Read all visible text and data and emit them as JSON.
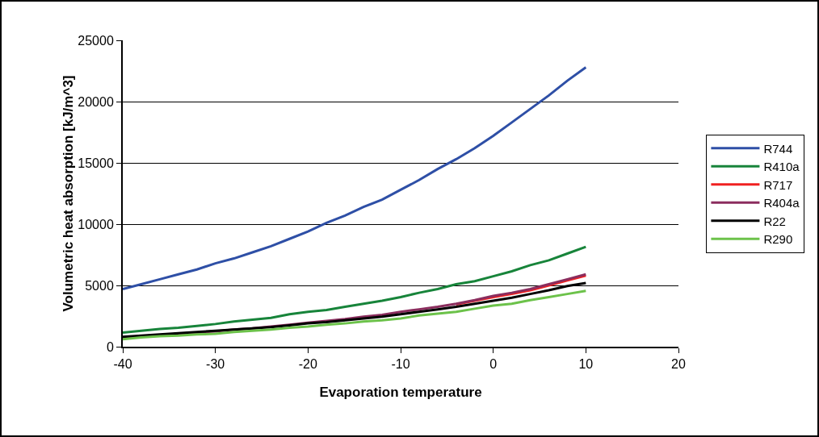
{
  "chart_data": {
    "type": "line",
    "xlabel": "Evaporation temperature",
    "ylabel": "Volumetric heat absorption [kJ/m^3]",
    "x": [
      -40,
      -38,
      -36,
      -34,
      -32,
      -30,
      -28,
      -26,
      -24,
      -22,
      -20,
      -18,
      -16,
      -14,
      -12,
      -10,
      -8,
      -6,
      -4,
      -2,
      0,
      2,
      4,
      6,
      8,
      10
    ],
    "series": [
      {
        "name": "R744",
        "color": "#2e4fa6",
        "values": [
          4700,
          5100,
          5500,
          5900,
          6300,
          6800,
          7200,
          7700,
          8200,
          8800,
          9400,
          10100,
          10700,
          11400,
          12000,
          12800,
          13600,
          14500,
          15300,
          16200,
          17200,
          18300,
          19400,
          20500,
          21700,
          22800
        ]
      },
      {
        "name": "R410a",
        "color": "#17843a",
        "values": [
          1150,
          1300,
          1450,
          1550,
          1700,
          1850,
          2050,
          2200,
          2350,
          2650,
          2850,
          3000,
          3250,
          3500,
          3750,
          4050,
          4400,
          4700,
          5100,
          5350,
          5750,
          6150,
          6650,
          7050,
          7600,
          8150
        ]
      },
      {
        "name": "R717",
        "color": "#f02020",
        "values": [
          null,
          null,
          null,
          null,
          null,
          null,
          null,
          null,
          null,
          null,
          null,
          null,
          null,
          null,
          null,
          null,
          null,
          null,
          3450,
          3750,
          4050,
          4300,
          4600,
          5000,
          5400,
          5800
        ]
      },
      {
        "name": "R404a",
        "color": "#8b2d5e",
        "values": [
          750,
          850,
          950,
          1050,
          1150,
          1250,
          1400,
          1500,
          1650,
          1800,
          1950,
          2100,
          2250,
          2450,
          2600,
          2850,
          3050,
          3250,
          3500,
          3800,
          4150,
          4400,
          4700,
          5100,
          5500,
          5900
        ]
      },
      {
        "name": "R22",
        "color": "#000000",
        "values": [
          800,
          900,
          1000,
          1100,
          1200,
          1300,
          1400,
          1500,
          1600,
          1750,
          1900,
          2000,
          2150,
          2300,
          2450,
          2650,
          2850,
          3050,
          3250,
          3500,
          3750,
          4000,
          4300,
          4600,
          4950,
          5200
        ]
      },
      {
        "name": "R290",
        "color": "#6cc24a",
        "values": [
          600,
          750,
          850,
          900,
          1000,
          1050,
          1200,
          1300,
          1400,
          1550,
          1650,
          1800,
          1900,
          2050,
          2150,
          2300,
          2550,
          2700,
          2850,
          3100,
          3350,
          3500,
          3800,
          4050,
          4300,
          4550
        ]
      }
    ],
    "xlim": [
      -40,
      20
    ],
    "xticks": [
      -40,
      -30,
      -20,
      -10,
      0,
      10,
      20
    ],
    "ylim": [
      0,
      25000
    ],
    "yticks": [
      0,
      5000,
      10000,
      15000,
      20000,
      25000
    ],
    "grid": "y",
    "legend": "right",
    "marker": "none",
    "line_style": "solid"
  }
}
